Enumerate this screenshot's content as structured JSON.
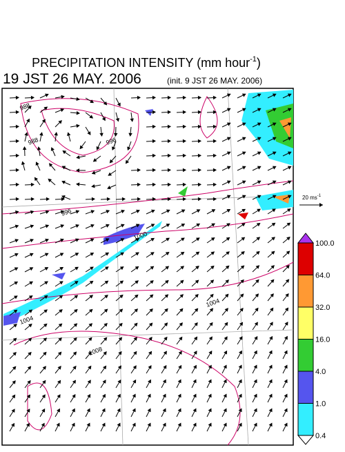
{
  "title": {
    "line1": "PRECIPITATION INTENSITY (mm hour",
    "line1_sup": "-1",
    "line1_end": ")",
    "valid": "19 JST 26 MAY. 2006",
    "init": "(init. 9 JST 26 MAY. 2006)"
  },
  "vector_legend": {
    "label": "20 ms",
    "sup": "-1"
  },
  "isobars": [
    "988",
    "988",
    "996",
    "996",
    "1000",
    "1004",
    "1004",
    "1008"
  ],
  "colorbar": [
    {
      "label": "100.0",
      "color": "#dd0000"
    },
    {
      "label": "64.0",
      "color": "#ff9933"
    },
    {
      "label": "32.0",
      "color": "#ffff66"
    },
    {
      "label": "16.0",
      "color": "#33cc33"
    },
    {
      "label": "4.0",
      "color": "#5555ee"
    },
    {
      "label": "1.0",
      "color": "#33eeff"
    },
    {
      "label": "0.4",
      "color": null
    }
  ]
}
